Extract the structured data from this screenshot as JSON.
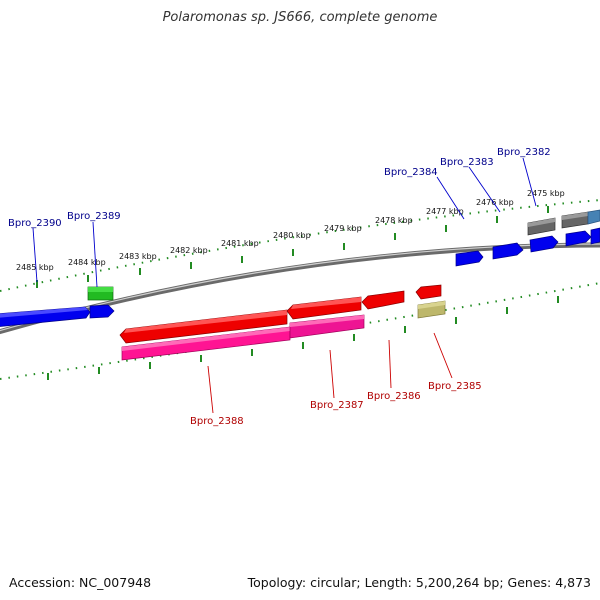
{
  "title": "Polaromonas sp. JS666, complete genome",
  "footer": {
    "accession": "Accession: NC_007948",
    "topology": "Topology: circular; Length: 5,200,264 bp; Genes: 4,873"
  },
  "ruler": {
    "ticks": [
      "2485 kbp",
      "2484 kbp",
      "2483 kbp",
      "2482 kbp",
      "2481 kbp",
      "2480 kbp",
      "2479 kbp",
      "2478 kbp",
      "2477 kbp",
      "2476 kbp",
      "2475 kbp"
    ]
  },
  "genes": {
    "forward_labels": [
      "Bpro_2390",
      "Bpro_2389",
      "Bpro_2384",
      "Bpro_2383",
      "Bpro_2382"
    ],
    "reverse_labels": [
      "Bpro_2388",
      "Bpro_2387",
      "Bpro_2386",
      "Bpro_2385"
    ]
  },
  "colors": {
    "forward_cds": "#0000ff",
    "reverse_cds": "#ff0000",
    "rna": "#ff1493",
    "green": "#22bb22",
    "gray": "#666666",
    "khaki": "#bdb76b",
    "steel": "#4682b4",
    "ruler": "#228b22",
    "backbone": "#808080"
  }
}
